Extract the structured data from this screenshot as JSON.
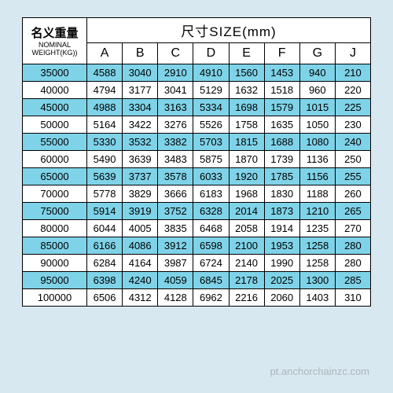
{
  "header": {
    "nominal_cn": "名义重量",
    "nominal_en_line1": "NOMINAL",
    "nominal_en_line2": "WEIGHT(KG))",
    "size_label": "尺寸SIZE(mm)"
  },
  "columns": [
    "A",
    "B",
    "C",
    "D",
    "E",
    "F",
    "G",
    "J"
  ],
  "rows": [
    {
      "w": "35000",
      "v": [
        "4588",
        "3040",
        "2910",
        "4910",
        "1560",
        "1453",
        "940",
        "210"
      ]
    },
    {
      "w": "40000",
      "v": [
        "4794",
        "3177",
        "3041",
        "5129",
        "1632",
        "1518",
        "960",
        "220"
      ]
    },
    {
      "w": "45000",
      "v": [
        "4988",
        "3304",
        "3163",
        "5334",
        "1698",
        "1579",
        "1015",
        "225"
      ]
    },
    {
      "w": "50000",
      "v": [
        "5164",
        "3422",
        "3276",
        "5526",
        "1758",
        "1635",
        "1050",
        "230"
      ]
    },
    {
      "w": "55000",
      "v": [
        "5330",
        "3532",
        "3382",
        "5703",
        "1815",
        "1688",
        "1080",
        "240"
      ]
    },
    {
      "w": "60000",
      "v": [
        "5490",
        "3639",
        "3483",
        "5875",
        "1870",
        "1739",
        "1136",
        "250"
      ]
    },
    {
      "w": "65000",
      "v": [
        "5639",
        "3737",
        "3578",
        "6033",
        "1920",
        "1785",
        "1156",
        "255"
      ]
    },
    {
      "w": "70000",
      "v": [
        "5778",
        "3829",
        "3666",
        "6183",
        "1968",
        "1830",
        "1188",
        "260"
      ]
    },
    {
      "w": "75000",
      "v": [
        "5914",
        "3919",
        "3752",
        "6328",
        "2014",
        "1873",
        "1210",
        "265"
      ]
    },
    {
      "w": "80000",
      "v": [
        "6044",
        "4005",
        "3835",
        "6468",
        "2058",
        "1914",
        "1235",
        "270"
      ]
    },
    {
      "w": "85000",
      "v": [
        "6166",
        "4086",
        "3912",
        "6598",
        "2100",
        "1953",
        "1258",
        "280"
      ]
    },
    {
      "w": "90000",
      "v": [
        "6284",
        "4164",
        "3987",
        "6724",
        "2140",
        "1990",
        "1258",
        "280"
      ]
    },
    {
      "w": "95000",
      "v": [
        "6398",
        "4240",
        "4059",
        "6845",
        "2178",
        "2025",
        "1300",
        "285"
      ]
    },
    {
      "w": "100000",
      "v": [
        "6506",
        "4312",
        "4128",
        "6962",
        "2216",
        "2060",
        "1403",
        "310"
      ]
    }
  ],
  "watermark": "pt.anchorchainzc.com",
  "styling": {
    "page_bg": "#d8e8f0",
    "stripe_bg": "#7fd3e8",
    "plain_bg": "#ffffff",
    "border_color": "#000000",
    "watermark_color": "rgba(0,0,0,0.22)"
  }
}
